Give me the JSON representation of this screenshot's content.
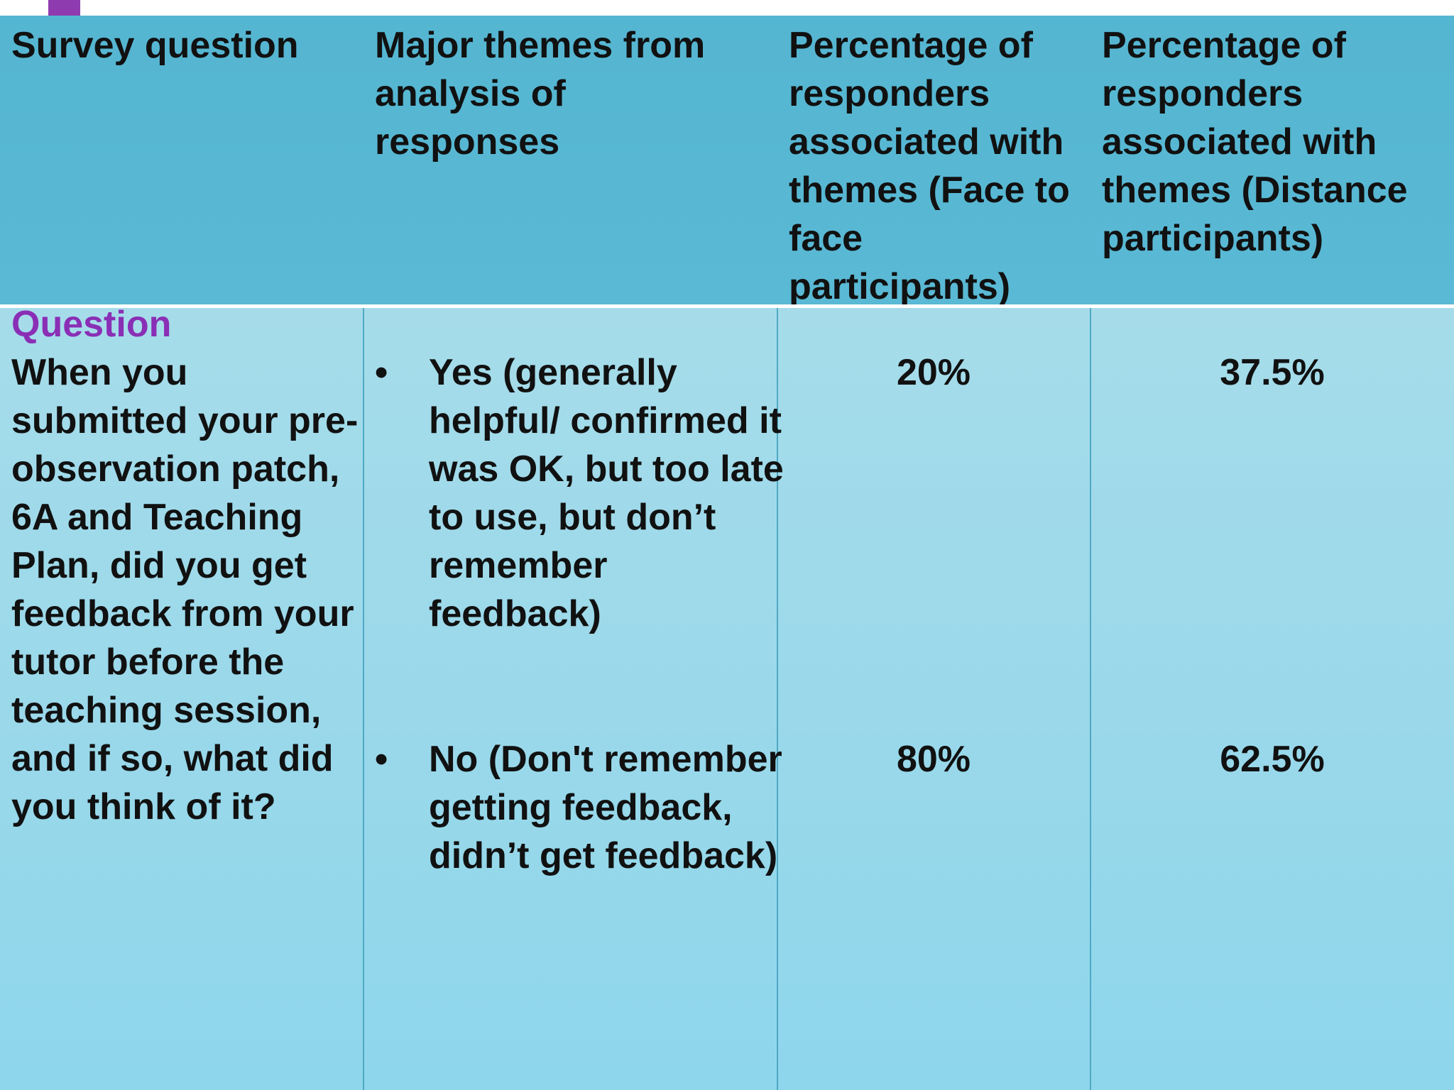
{
  "table": {
    "headers": [
      "Survey question",
      "Major themes from analysis of responses",
      "Percentage of responders associated with themes (Face to face participants)",
      "Percentage of responders associated with themes (Distance participants)"
    ],
    "question_label": "Question",
    "question_text": "When you submitted your pre-observation patch, 6A and Teaching Plan, did you get feedback from your tutor before the teaching session, and if so, what did you think of it?",
    "themes": [
      {
        "text": "Yes (generally helpful/ confirmed it was OK, but too late to use, but don’t remember feedback)",
        "face_to_face": "20%",
        "distance": "37.5%"
      },
      {
        "text": "No (Don't remember getting feedback, didn’t get feedback)",
        "face_to_face": "80%",
        "distance": "62.5%"
      }
    ],
    "bullet": "•"
  },
  "colors": {
    "header_bg": "#55b6d2",
    "body_bg": "#a6dcea",
    "question_label": "#8a2fb5",
    "accent": "#8e3bb0"
  }
}
